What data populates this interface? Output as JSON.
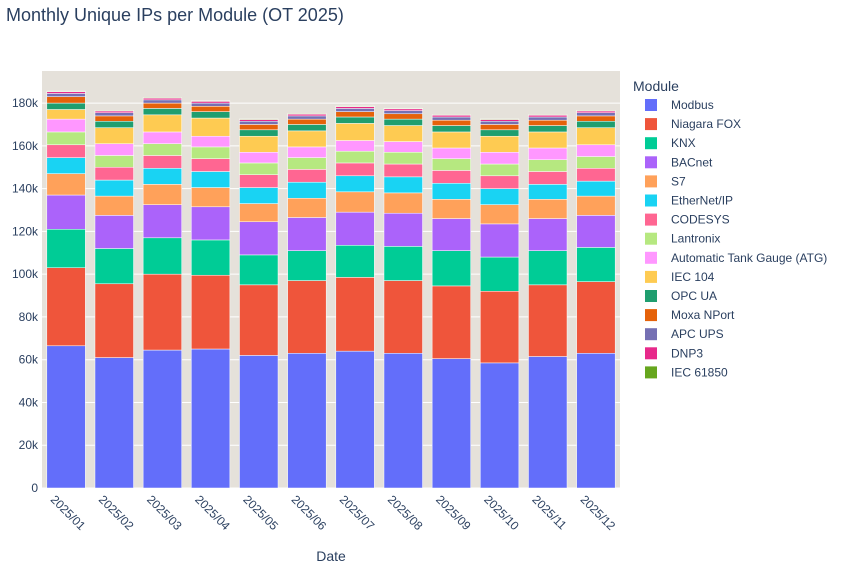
{
  "chart_data": {
    "type": "bar",
    "stacked": true,
    "title": "Monthly Unique IPs per Module (OT 2025)",
    "xlabel": "Date",
    "ylabel": "",
    "ylim": [
      0,
      195000
    ],
    "yticks": [
      0,
      20000,
      40000,
      60000,
      80000,
      100000,
      120000,
      140000,
      160000,
      180000
    ],
    "ytick_labels": [
      "0",
      "20k",
      "40k",
      "60k",
      "80k",
      "100k",
      "120k",
      "140k",
      "160k",
      "180k"
    ],
    "legend_title": "Module",
    "legend_position": "right",
    "grid": true,
    "plot_background": "#e5e1da",
    "categories": [
      "2025/01",
      "2025/02",
      "2025/03",
      "2025/04",
      "2025/05",
      "2025/06",
      "2025/07",
      "2025/08",
      "2025/09",
      "2025/10",
      "2025/11",
      "2025/12"
    ],
    "series": [
      {
        "name": "Modbus",
        "color": "#636efa",
        "values": [
          66500,
          61000,
          64500,
          65000,
          62000,
          63000,
          64000,
          63000,
          60500,
          58500,
          61500,
          63000
        ]
      },
      {
        "name": "Niagara FOX",
        "color": "#ef553b",
        "values": [
          36500,
          34500,
          35500,
          34500,
          33000,
          34000,
          34500,
          34000,
          34000,
          33500,
          33500,
          33500
        ]
      },
      {
        "name": "KNX",
        "color": "#00cc96",
        "values": [
          18000,
          16500,
          17000,
          16500,
          14000,
          14000,
          15000,
          16000,
          16500,
          16000,
          16000,
          16000
        ]
      },
      {
        "name": "BACnet",
        "color": "#ab63fa",
        "values": [
          16000,
          15500,
          15500,
          15500,
          15500,
          15500,
          15500,
          15500,
          15000,
          15500,
          15000,
          15000
        ]
      },
      {
        "name": "S7",
        "color": "#ffa15a",
        "values": [
          10000,
          9000,
          9500,
          9000,
          8500,
          9000,
          9500,
          9500,
          9000,
          9000,
          9000,
          9000
        ]
      },
      {
        "name": "EtherNet/IP",
        "color": "#19d3f3",
        "values": [
          7500,
          7500,
          7500,
          7500,
          7500,
          7500,
          7500,
          7500,
          7500,
          7500,
          7000,
          7000
        ]
      },
      {
        "name": "CODESYS",
        "color": "#ff6692",
        "values": [
          6000,
          6000,
          6000,
          6000,
          6000,
          6000,
          6000,
          6000,
          6000,
          6000,
          6000,
          6000
        ]
      },
      {
        "name": "Lantronix",
        "color": "#b6e880",
        "values": [
          6000,
          5500,
          5500,
          5500,
          5500,
          5500,
          5500,
          5500,
          5500,
          5500,
          5500,
          5500
        ]
      },
      {
        "name": "Automatic Tank Gauge (ATG)",
        "color": "#ff97ff",
        "values": [
          6000,
          5500,
          5500,
          5000,
          5000,
          5000,
          5000,
          5000,
          5000,
          5500,
          5500,
          5500
        ]
      },
      {
        "name": "IEC 104",
        "color": "#fecb52",
        "values": [
          4500,
          7500,
          8000,
          8500,
          7500,
          7500,
          8000,
          7500,
          7500,
          7500,
          7500,
          8000
        ]
      },
      {
        "name": "OPC UA",
        "color": "#1f9e6f",
        "values": [
          3000,
          3000,
          3000,
          3000,
          3000,
          3000,
          3000,
          3000,
          3000,
          3000,
          3000,
          3000
        ]
      },
      {
        "name": "Moxa NPort",
        "color": "#e5620a",
        "values": [
          3000,
          2500,
          2500,
          2500,
          2500,
          2500,
          2500,
          2500,
          2500,
          2500,
          2500,
          2500
        ]
      },
      {
        "name": "APC UPS",
        "color": "#7570b3",
        "values": [
          1500,
          1500,
          1500,
          1500,
          1500,
          1500,
          1500,
          1500,
          1500,
          1500,
          1500,
          1500
        ]
      },
      {
        "name": "DNP3",
        "color": "#e7298a",
        "values": [
          800,
          800,
          800,
          800,
          800,
          800,
          800,
          800,
          800,
          800,
          800,
          800
        ]
      },
      {
        "name": "IEC 61850",
        "color": "#66a61e",
        "values": [
          300,
          300,
          300,
          300,
          300,
          300,
          300,
          300,
          300,
          300,
          300,
          300
        ]
      }
    ]
  }
}
